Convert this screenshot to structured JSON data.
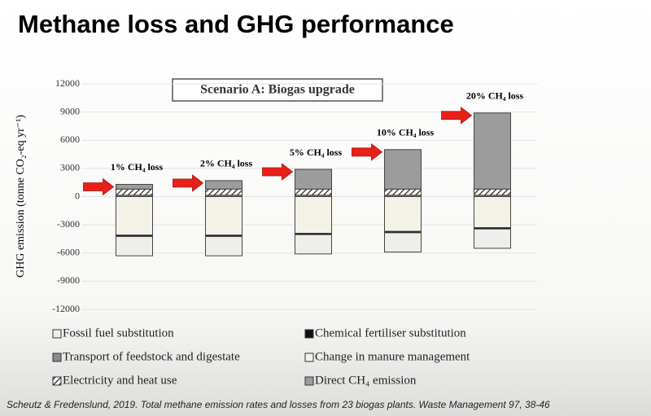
{
  "chart_data": {
    "type": "bar",
    "stacked": true,
    "title": "Methane loss and GHG performance",
    "annotation": "Scenario A: Biogas upgrade",
    "y_label": "GHG emission (tonne CO₂-eq yr⁻¹)",
    "source": "Scheutz & Fredenslund, 2019. Total methane emission rates and losses from 23 biogas plants. Waste Management 97, 38-46",
    "categories": [
      "1% CH₄ loss",
      "2% CH₄ loss",
      "5% CH₄ loss",
      "10% CH₄ loss",
      "20% CH₄ loss"
    ],
    "series": [
      {
        "name": "Change in manure management",
        "color": "#f4f2e6",
        "values": [
          -4100,
          -4100,
          -3900,
          -3700,
          -3300
        ]
      },
      {
        "name": "Chemical fertiliser substitution",
        "color": "#111111",
        "values": [
          -150,
          -150,
          -150,
          -150,
          -150
        ]
      },
      {
        "name": "Fossil fuel substitution",
        "color": "#eeeeea",
        "values": [
          -2050,
          -2050,
          -2050,
          -2050,
          -2050
        ]
      },
      {
        "name": "Transport of feedstock and digestate",
        "color": "#8a8a8a",
        "values": [
          150,
          150,
          150,
          150,
          150
        ]
      },
      {
        "name": "Electricity and heat use",
        "color": "#333333",
        "pattern": "hatch",
        "values": [
          650,
          650,
          650,
          650,
          650
        ]
      },
      {
        "name": "Direct CH₄ emission",
        "color": "#9c9c9c",
        "values": [
          500,
          900,
          2100,
          4200,
          8100
        ]
      }
    ],
    "ylim": [
      -12000,
      12000
    ],
    "yticks": [
      -12000,
      -9000,
      -6000,
      -3000,
      0,
      3000,
      6000,
      9000,
      12000
    ],
    "grid": true
  }
}
